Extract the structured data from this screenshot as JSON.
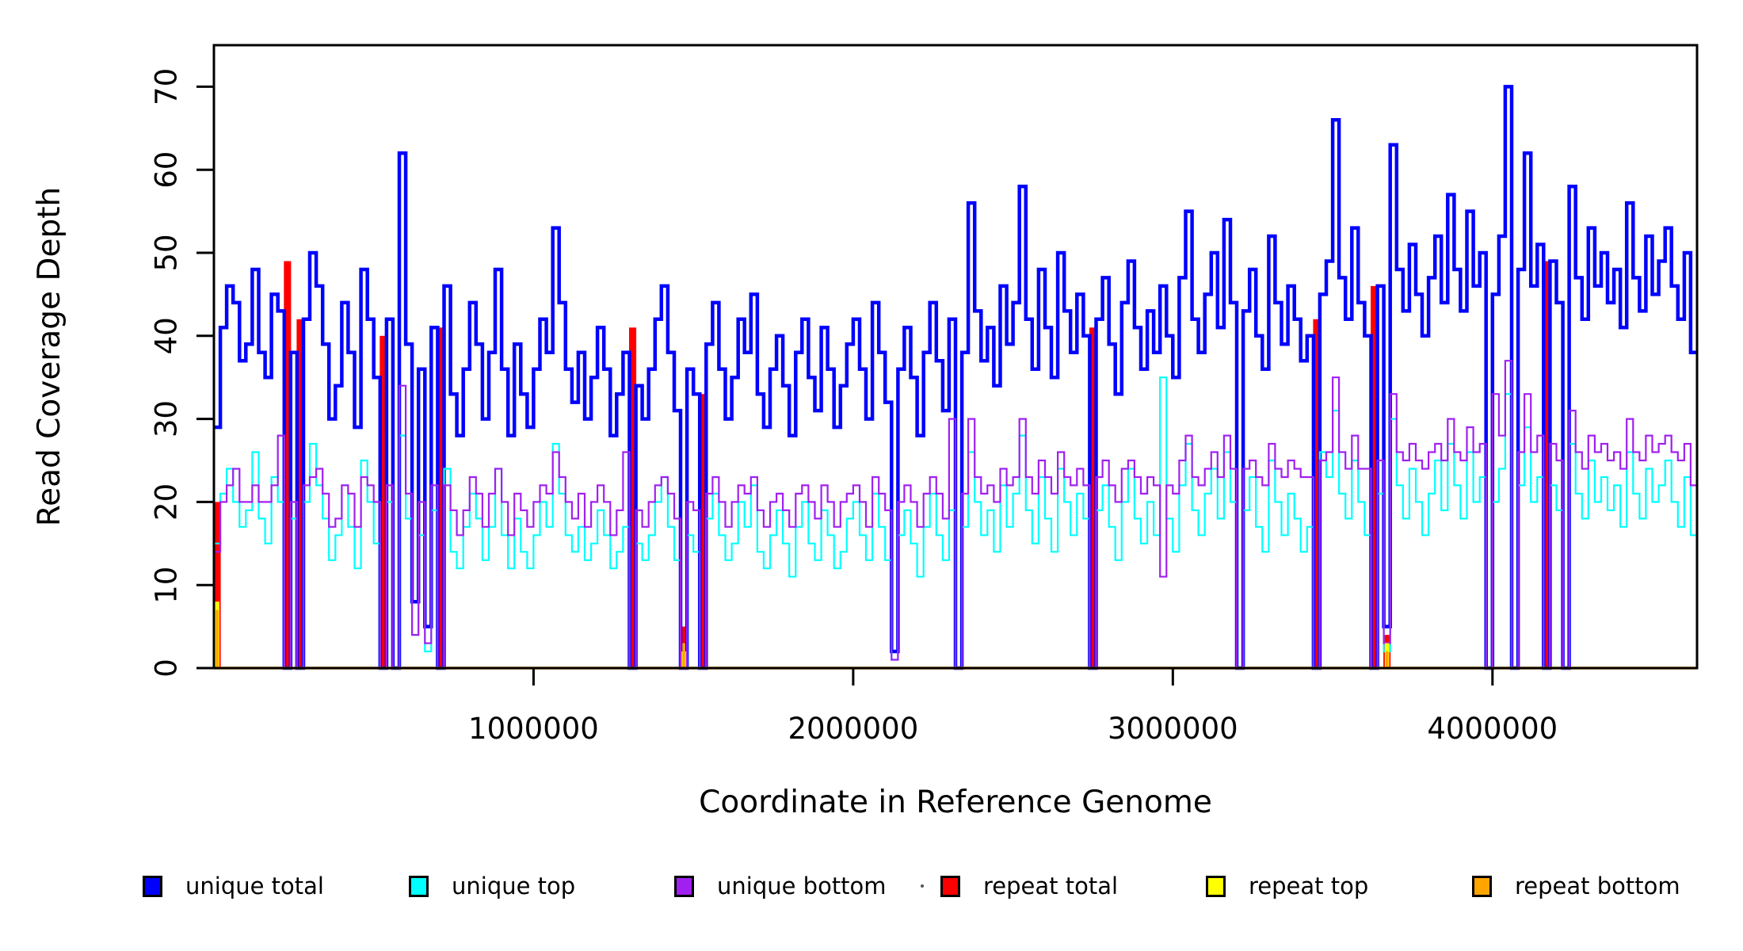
{
  "axes": {
    "y_label": "Read Coverage Depth",
    "x_label": "Coordinate in Reference Genome"
  },
  "legend": {
    "items": [
      {
        "label": "unique total",
        "color": "#0000ff"
      },
      {
        "label": "unique top",
        "color": "#00ffff"
      },
      {
        "label": "unique bottom",
        "color": "#a020f0"
      },
      {
        "label": "repeat total",
        "color": "#ff0000"
      },
      {
        "label": "repeat top",
        "color": "#ffff00"
      },
      {
        "label": "repeat bottom",
        "color": "#ffa500"
      }
    ],
    "item_lefts": [
      180,
      516,
      851,
      1187,
      1522,
      1858
    ]
  },
  "chart_data": {
    "type": "line",
    "step_style": "s",
    "title": "",
    "xlabel": "Coordinate in Reference Genome",
    "ylabel": "Read Coverage Depth",
    "xlim": [
      0,
      4640000
    ],
    "ylim": [
      0,
      75
    ],
    "grid": false,
    "legend_position": "bottom",
    "bin_bp": 20000,
    "n_bins": 232,
    "x_ticks": [
      {
        "value": 1000000,
        "label": "1000000"
      },
      {
        "value": 2000000,
        "label": "2000000"
      },
      {
        "value": 3000000,
        "label": "3000000"
      },
      {
        "value": 4000000,
        "label": "4000000"
      }
    ],
    "y_ticks": [
      {
        "value": 0,
        "label": "0"
      },
      {
        "value": 10,
        "label": "10"
      },
      {
        "value": 20,
        "label": "20"
      },
      {
        "value": 30,
        "label": "30"
      },
      {
        "value": 40,
        "label": "40"
      },
      {
        "value": 50,
        "label": "50"
      },
      {
        "value": 60,
        "label": "60"
      },
      {
        "value": 70,
        "label": "70"
      }
    ],
    "series": [
      {
        "name": "unique total",
        "color": "#0000ff",
        "stroke_width": 4.5,
        "values": [
          29,
          41,
          46,
          44,
          37,
          39,
          48,
          38,
          35,
          45,
          43,
          0,
          38,
          0,
          42,
          50,
          46,
          39,
          30,
          34,
          44,
          38,
          29,
          48,
          42,
          35,
          0,
          42,
          0,
          62,
          39,
          8,
          36,
          5,
          41,
          0,
          46,
          33,
          28,
          36,
          44,
          39,
          30,
          38,
          48,
          36,
          28,
          39,
          33,
          29,
          36,
          42,
          38,
          53,
          44,
          36,
          32,
          38,
          30,
          35,
          41,
          36,
          28,
          33,
          38,
          0,
          34,
          30,
          36,
          42,
          46,
          38,
          31,
          0,
          36,
          33,
          0,
          39,
          44,
          36,
          30,
          35,
          42,
          38,
          45,
          33,
          29,
          36,
          40,
          34,
          28,
          38,
          42,
          35,
          31,
          41,
          36,
          29,
          34,
          39,
          42,
          36,
          30,
          44,
          38,
          32,
          2,
          36,
          41,
          35,
          28,
          38,
          44,
          37,
          31,
          42,
          0,
          38,
          56,
          43,
          37,
          41,
          34,
          46,
          39,
          44,
          58,
          42,
          36,
          48,
          41,
          35,
          50,
          43,
          38,
          45,
          40,
          0,
          42,
          47,
          39,
          33,
          44,
          49,
          41,
          36,
          43,
          38,
          46,
          40,
          35,
          47,
          55,
          42,
          38,
          45,
          50,
          41,
          54,
          44,
          0,
          43,
          48,
          40,
          36,
          52,
          44,
          39,
          46,
          42,
          37,
          40,
          0,
          45,
          49,
          66,
          47,
          42,
          53,
          44,
          40,
          0,
          46,
          5,
          63,
          48,
          43,
          51,
          45,
          40,
          47,
          52,
          44,
          57,
          48,
          43,
          55,
          46,
          50,
          0,
          45,
          52,
          70,
          0,
          48,
          62,
          46,
          51,
          0,
          49,
          44,
          0,
          58,
          47,
          42,
          53,
          46,
          50,
          44,
          48,
          41,
          56,
          47,
          43,
          52,
          45,
          49,
          53,
          46,
          42,
          50,
          38
        ]
      },
      {
        "name": "unique top",
        "color": "#00ffff",
        "stroke_width": 2.2,
        "values": [
          15,
          21,
          24,
          20,
          17,
          19,
          26,
          18,
          15,
          23,
          20,
          0,
          18,
          0,
          20,
          27,
          22,
          18,
          13,
          16,
          22,
          17,
          12,
          25,
          20,
          15,
          0,
          20,
          0,
          28,
          18,
          4,
          16,
          2,
          19,
          0,
          24,
          14,
          12,
          17,
          21,
          18,
          13,
          17,
          24,
          16,
          12,
          18,
          14,
          12,
          16,
          20,
          17,
          27,
          21,
          16,
          14,
          17,
          13,
          15,
          19,
          16,
          12,
          14,
          17,
          0,
          15,
          13,
          16,
          20,
          23,
          17,
          13,
          0,
          16,
          14,
          0,
          18,
          21,
          16,
          13,
          15,
          20,
          17,
          22,
          14,
          12,
          16,
          19,
          15,
          11,
          17,
          20,
          15,
          13,
          19,
          16,
          12,
          14,
          18,
          20,
          16,
          13,
          21,
          17,
          13,
          1,
          16,
          19,
          15,
          11,
          17,
          21,
          16,
          13,
          19,
          0,
          17,
          26,
          20,
          16,
          19,
          14,
          22,
          17,
          21,
          28,
          19,
          15,
          23,
          18,
          14,
          24,
          20,
          16,
          21,
          18,
          0,
          19,
          22,
          17,
          13,
          20,
          24,
          18,
          15,
          20,
          16,
          35,
          18,
          14,
          22,
          27,
          19,
          16,
          21,
          24,
          18,
          26,
          20,
          0,
          19,
          23,
          17,
          14,
          25,
          20,
          16,
          21,
          18,
          14,
          17,
          0,
          26,
          23,
          31,
          21,
          18,
          25,
          20,
          16,
          0,
          21,
          2,
          30,
          22,
          18,
          24,
          20,
          16,
          21,
          25,
          19,
          27,
          22,
          18,
          26,
          20,
          23,
          0,
          20,
          24,
          33,
          0,
          22,
          29,
          20,
          23,
          0,
          22,
          19,
          0,
          27,
          21,
          18,
          25,
          20,
          23,
          19,
          22,
          17,
          26,
          21,
          18,
          24,
          20,
          22,
          25,
          20,
          17,
          23,
          16
        ]
      },
      {
        "name": "unique bottom",
        "color": "#a020f0",
        "stroke_width": 2.2,
        "values": [
          14,
          20,
          22,
          24,
          20,
          20,
          22,
          20,
          20,
          22,
          28,
          0,
          20,
          0,
          22,
          23,
          24,
          21,
          17,
          18,
          22,
          21,
          17,
          23,
          22,
          20,
          0,
          22,
          0,
          34,
          21,
          4,
          20,
          3,
          22,
          0,
          22,
          19,
          16,
          19,
          23,
          21,
          17,
          21,
          24,
          20,
          16,
          21,
          19,
          17,
          20,
          22,
          21,
          26,
          23,
          20,
          18,
          21,
          17,
          20,
          22,
          20,
          16,
          19,
          26,
          0,
          19,
          17,
          20,
          22,
          23,
          21,
          18,
          0,
          20,
          19,
          0,
          21,
          23,
          20,
          17,
          20,
          22,
          21,
          23,
          19,
          17,
          20,
          21,
          19,
          17,
          21,
          22,
          20,
          18,
          22,
          20,
          17,
          20,
          21,
          22,
          20,
          17,
          23,
          21,
          19,
          1,
          20,
          22,
          20,
          17,
          21,
          23,
          21,
          18,
          30,
          0,
          21,
          30,
          23,
          21,
          22,
          20,
          24,
          22,
          23,
          30,
          23,
          21,
          25,
          23,
          21,
          26,
          23,
          22,
          24,
          22,
          0,
          23,
          25,
          22,
          20,
          24,
          25,
          23,
          21,
          23,
          22,
          11,
          22,
          21,
          25,
          28,
          23,
          22,
          24,
          26,
          23,
          28,
          24,
          0,
          24,
          25,
          23,
          22,
          27,
          24,
          23,
          25,
          24,
          23,
          23,
          0,
          25,
          26,
          35,
          26,
          24,
          28,
          24,
          24,
          0,
          25,
          3,
          33,
          26,
          25,
          27,
          25,
          24,
          26,
          27,
          25,
          30,
          26,
          25,
          29,
          26,
          27,
          0,
          33,
          28,
          37,
          0,
          26,
          33,
          26,
          28,
          0,
          27,
          25,
          0,
          31,
          26,
          24,
          28,
          26,
          27,
          25,
          26,
          24,
          30,
          26,
          25,
          28,
          26,
          27,
          28,
          26,
          25,
          27,
          22
        ]
      },
      {
        "name": "repeat total",
        "color": "#ff0000",
        "stroke_width": 0,
        "baseline": 0,
        "spikes": {
          "0": 20,
          "11": 49,
          "13": 42,
          "26": 40,
          "35": 41,
          "65": 41,
          "73": 5,
          "76": 33,
          "137": 41,
          "172": 42,
          "181": 46,
          "183": 4,
          "208": 49
        }
      },
      {
        "name": "repeat top",
        "color": "#ffff00",
        "stroke_width": 0,
        "baseline": 0,
        "spikes": {
          "0": 8,
          "73": 2,
          "183": 3
        }
      },
      {
        "name": "repeat bottom",
        "color": "#ffa500",
        "stroke_width": 0,
        "baseline": 0,
        "spikes": {
          "0": 7,
          "73": 3,
          "183": 2
        }
      }
    ],
    "baseline": {
      "color": "#ffa500",
      "value": 0,
      "stroke_width": 3.5
    }
  },
  "misc": {
    "stray_dot": true
  }
}
